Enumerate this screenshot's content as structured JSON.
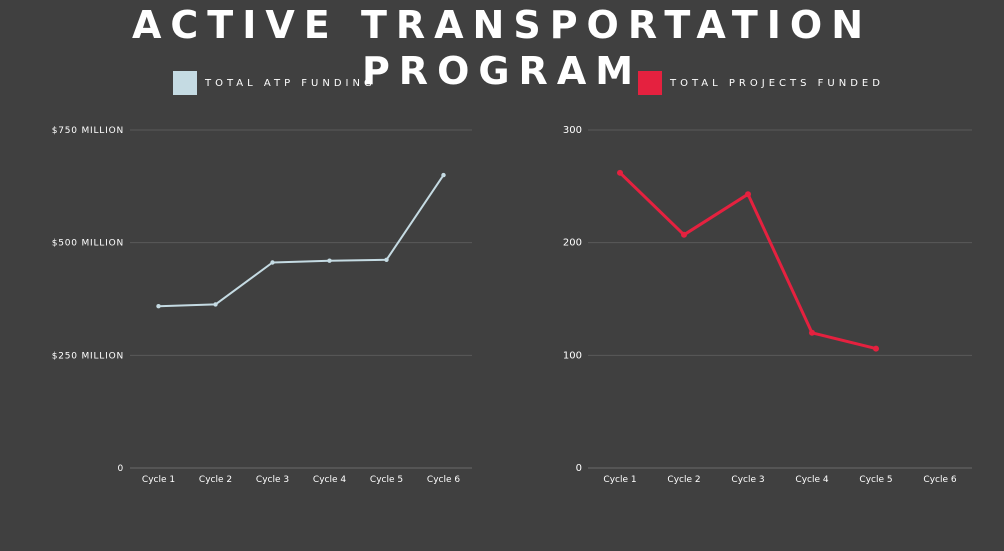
{
  "title": "ACTIVE TRANSPORTATION PROGRAM",
  "colors": {
    "background": "#404040",
    "funding": "#c5dbe3",
    "projects": "#e5213f",
    "grid": "#5a5a5a"
  },
  "chart_data": [
    {
      "type": "line",
      "legend": "TOTAL ATP FUNDING",
      "categories": [
        "Cycle 1",
        "Cycle 2",
        "Cycle 3",
        "Cycle 4",
        "Cycle 5",
        "Cycle 6"
      ],
      "values": [
        359,
        363,
        456,
        460,
        462,
        650
      ],
      "ylim": [
        0,
        750
      ],
      "yticks": [
        {
          "value": 750,
          "label": "$750 MILLION"
        },
        {
          "value": 500,
          "label": "$500 MILLION"
        },
        {
          "value": 250,
          "label": "$250 MILLION"
        },
        {
          "value": 0,
          "label": "0"
        }
      ],
      "grid": true,
      "legend_position": "top"
    },
    {
      "type": "line",
      "legend": "TOTAL PROJECTS FUNDED",
      "categories": [
        "Cycle 1",
        "Cycle 2",
        "Cycle 3",
        "Cycle 4",
        "Cycle 5",
        "Cycle 6"
      ],
      "values": [
        262,
        207,
        243,
        120,
        106,
        null
      ],
      "ylim": [
        0,
        300
      ],
      "yticks": [
        {
          "value": 300,
          "label": "300"
        },
        {
          "value": 200,
          "label": "200"
        },
        {
          "value": 100,
          "label": "100"
        },
        {
          "value": 0,
          "label": "0"
        }
      ],
      "grid": true,
      "legend_position": "top"
    }
  ]
}
